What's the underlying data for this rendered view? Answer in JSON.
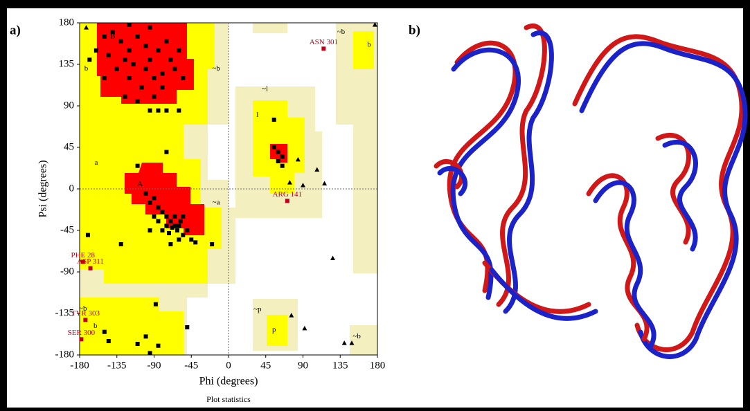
{
  "panel_labels": [
    "a)",
    "b)"
  ],
  "chart_data": {
    "type": "scatter",
    "xlabel": "Phi (degrees)",
    "ylabel": "Psi (degrees)",
    "caption": "Plot statistics",
    "xlim": [
      -180,
      180
    ],
    "ylim": [
      -180,
      180
    ],
    "xticks": [
      -180,
      -135,
      -90,
      -45,
      0,
      45,
      90,
      135,
      180
    ],
    "yticks": [
      -180,
      -135,
      -90,
      -45,
      0,
      45,
      90,
      135,
      180
    ],
    "region_labels": [
      {
        "text": "B",
        "x": -140,
        "y": 165
      },
      {
        "text": "b",
        "x": -172,
        "y": 130
      },
      {
        "text": "~b",
        "x": -15,
        "y": 130
      },
      {
        "text": "a",
        "x": -160,
        "y": 28
      },
      {
        "text": "A",
        "x": -107,
        "y": 5
      },
      {
        "text": "~a",
        "x": -15,
        "y": -15
      },
      {
        "text": "~l",
        "x": 44,
        "y": 108
      },
      {
        "text": "l",
        "x": 35,
        "y": 80
      },
      {
        "text": "~p",
        "x": 35,
        "y": -131
      },
      {
        "text": "p",
        "x": 55,
        "y": -153
      },
      {
        "text": "~b",
        "x": 136,
        "y": 170
      },
      {
        "text": "b",
        "x": 170,
        "y": 156
      },
      {
        "text": "~b",
        "x": 155,
        "y": -160
      },
      {
        "text": "~b",
        "x": -176,
        "y": -130
      },
      {
        "text": "b",
        "x": -161,
        "y": -149
      }
    ],
    "series": [
      {
        "marker": "square",
        "color": "#000000",
        "x": [
          -150,
          -140,
          -130,
          -120,
          -110,
          -100,
          -95,
          -85,
          -75,
          -70,
          -65,
          -80,
          -90,
          -100,
          -115,
          -125,
          -135,
          -145,
          -120,
          -105,
          -90,
          -80,
          -110,
          -125,
          -150,
          -160,
          -168,
          -60,
          -55,
          -95,
          -120,
          -85,
          -95,
          -75,
          -60,
          -100,
          -95,
          -90,
          -85,
          -80,
          -75,
          -70,
          -65,
          -60,
          -62,
          -58,
          -68,
          -72,
          -55,
          -60,
          -65,
          -75,
          -80,
          -85,
          -90,
          -50,
          -45,
          -110,
          -70,
          -95,
          -55,
          -40,
          -20,
          -75,
          -130,
          -170,
          -88,
          -85,
          -100,
          -110,
          -150,
          -145,
          -95,
          -50,
          55,
          55,
          60,
          65,
          60,
          65
        ],
        "y": [
          165,
          170,
          160,
          150,
          165,
          155,
          140,
          150,
          160,
          140,
          130,
          125,
          120,
          130,
          135,
          140,
          130,
          145,
          120,
          110,
          100,
          110,
          95,
          100,
          120,
          150,
          140,
          150,
          120,
          175,
          178,
          85,
          85,
          85,
          85,
          -5,
          -15,
          -10,
          -20,
          -25,
          -30,
          -35,
          -40,
          -40,
          -45,
          -35,
          -42,
          -48,
          -50,
          -55,
          -30,
          -40,
          -45,
          -35,
          -30,
          -45,
          -55,
          25,
          -60,
          -45,
          -30,
          -58,
          -60,
          40,
          -60,
          -50,
          -125,
          -170,
          -160,
          -168,
          -155,
          -165,
          -178,
          -150,
          75,
          45,
          40,
          35,
          30,
          25
        ]
      },
      {
        "marker": "triangle",
        "color": "#000000",
        "x": [
          -172,
          177,
          84,
          107,
          116,
          90,
          74,
          126,
          76,
          92,
          140,
          149
        ],
        "y": [
          175,
          178,
          32,
          21,
          6,
          4,
          7,
          -75,
          -137,
          -151,
          -167,
          -167
        ]
      },
      {
        "marker": "square",
        "color": "#c0001a",
        "x": [
          115,
          71,
          -176,
          -167,
          -173,
          -178
        ],
        "y": [
          152,
          -13,
          -79,
          -86,
          -142,
          -163
        ],
        "labels": [
          "ASN 301",
          "ARG 141",
          "PHE 28",
          "ASP 311",
          "TYR 303",
          "SER 300"
        ]
      }
    ]
  }
}
